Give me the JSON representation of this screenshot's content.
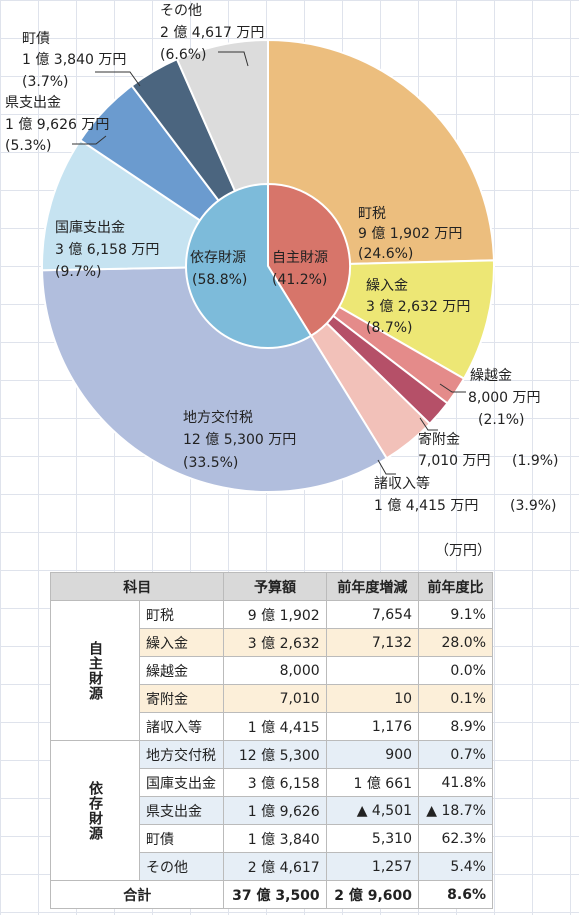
{
  "chart_data": {
    "type": "pie",
    "categories": [
      "町税",
      "繰入金",
      "繰越金",
      "寄附金",
      "諸収入等",
      "地方交付税",
      "国庫支出金",
      "県支出金",
      "町債",
      "その他"
    ],
    "amounts": [
      "9 億 1,902 万円",
      "3 億 2,632 万円",
      "8,000 万円",
      "7,010 万円",
      "1 億 4,415 万円",
      "12 億 5,300 万円",
      "3 億 6,158 万円",
      "1 億 9,626 万円",
      "1 億 3,840 万円",
      "2 億 4,617 万円"
    ],
    "values": [
      24.6,
      8.7,
      2.1,
      1.9,
      3.9,
      33.5,
      9.7,
      5.3,
      3.7,
      6.6
    ],
    "value_labels": [
      "(24.6%)",
      "(8.7%)",
      "(2.1%)",
      "(1.9%)",
      "(3.9%)",
      "(33.5%)",
      "(9.7%)",
      "(5.3%)",
      "(3.7%)",
      "(6.6%)"
    ],
    "colors": [
      "#ecbe7e",
      "#ede775",
      "#e48b8a",
      "#b55068",
      "#f2c1b9",
      "#b1bedd",
      "#c6e3f1",
      "#6b9bcf",
      "#4b657f",
      "#dcdcdc"
    ],
    "inner": {
      "categories": [
        "自主財源",
        "依存財源"
      ],
      "values": [
        41.2,
        58.8
      ],
      "value_labels": [
        "(41.2%)",
        "(58.8%)"
      ],
      "colors": [
        "#d7756a",
        "#7dbbda"
      ]
    }
  },
  "table": {
    "unit": "（万円）",
    "header": [
      "科目",
      "予算額",
      "前年度増減",
      "前年度比"
    ],
    "groups": [
      {
        "label": "自主財源",
        "rows": [
          [
            "町税",
            "9 億 1,902",
            "7,654",
            "9.1%"
          ],
          [
            "繰入金",
            "3 億 2,632",
            "7,132",
            "28.0%"
          ],
          [
            "繰越金",
            "8,000",
            null,
            "0.0%"
          ],
          [
            "寄附金",
            "7,010",
            "10",
            "0.1%"
          ],
          [
            "諸収入等",
            "1 億 4,415",
            "1,176",
            "8.9%"
          ]
        ]
      },
      {
        "label": "依存財源",
        "rows": [
          [
            "地方交付税",
            "12 億 5,300",
            "900",
            "0.7%"
          ],
          [
            "国庫支出金",
            "3 億 6,158",
            "1 億 661",
            "41.8%"
          ],
          [
            "県支出金",
            "1 億 9,626",
            "▲ 4,501",
            "▲ 18.7%"
          ],
          [
            "町債",
            "1 億 3,840",
            "5,310",
            "62.3%"
          ],
          [
            "その他",
            "2 億 4,617",
            "1,257",
            "5.4%"
          ]
        ]
      }
    ],
    "total": [
      "合計",
      "37 億 3,500",
      "2 億 9,600",
      "8.6%"
    ]
  }
}
